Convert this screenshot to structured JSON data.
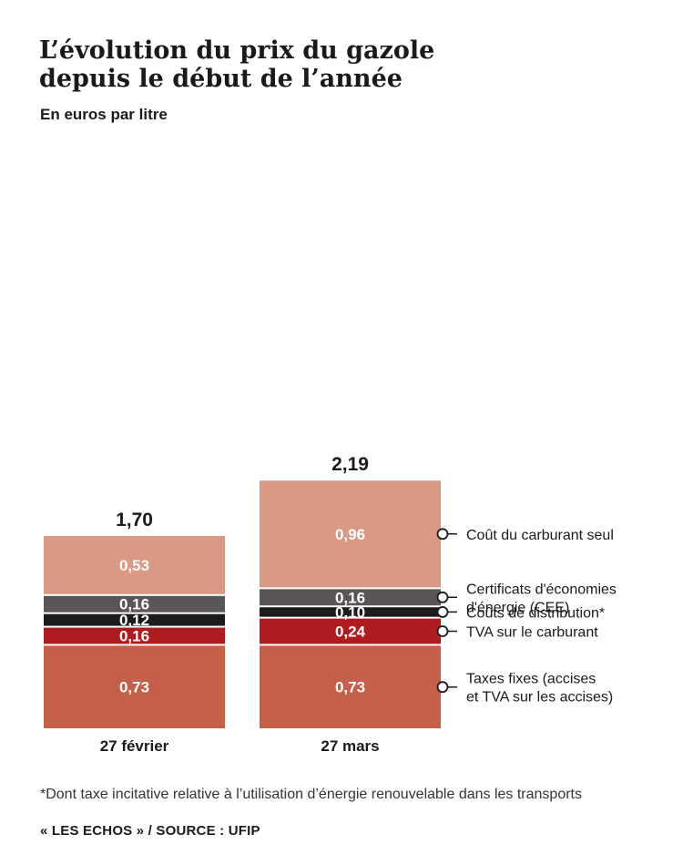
{
  "title_lines": [
    "L’évolution du prix du gazole",
    "depuis le début de l’année"
  ],
  "subtitle": "En euros par litre",
  "footnote": "*Dont taxe incitative relative à l’utilisation d’énergie renouvelable dans les transports",
  "source": "« LES ECHOS » / SOURCE : UFIP",
  "chart_data": {
    "type": "bar",
    "stacked": true,
    "title": "L’évolution du prix du gazole depuis le début de l’année",
    "ylabel": "En euros par litre",
    "categories": [
      "27 février",
      "27 mars"
    ],
    "totals": [
      "1,70",
      "2,19"
    ],
    "series": [
      {
        "name": "Taxes fixes (accises et TVA sur les accises)",
        "legend_lines": [
          "Taxes fixes (accises",
          "et TVA sur les accises)"
        ],
        "color": "#c55f49",
        "values": [
          0.73,
          0.73
        ],
        "labels": [
          "0,73",
          "0,73"
        ]
      },
      {
        "name": "TVA sur le carburant",
        "legend_lines": [
          "TVA sur le carburant"
        ],
        "color": "#b01c1e",
        "values": [
          0.16,
          0.24
        ],
        "labels": [
          "0,16",
          "0,24"
        ]
      },
      {
        "name": "Coûts de distribution*",
        "legend_lines": [
          "Coûts de distribution*"
        ],
        "color": "#1c1c1c",
        "values": [
          0.12,
          0.1
        ],
        "labels": [
          "0,12",
          "0,10"
        ]
      },
      {
        "name": "Certificats d'économies d'énergie (CEE)",
        "legend_lines": [
          "Certificats d'économies",
          "d'énergie (CEE)"
        ],
        "color": "#5a5656",
        "values": [
          0.16,
          0.16
        ],
        "labels": [
          "0,16",
          "0,16"
        ]
      },
      {
        "name": "Coût du carburant seul",
        "legend_lines": [
          "Coût du carburant seul"
        ],
        "color": "#d99985",
        "values": [
          0.53,
          0.96
        ],
        "labels": [
          "0,53",
          "0,96"
        ]
      }
    ],
    "legend_position": "right"
  }
}
